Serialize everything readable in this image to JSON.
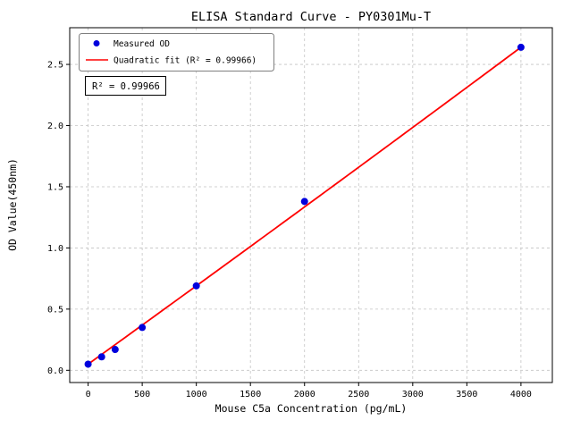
{
  "chart_data": {
    "type": "scatter",
    "title": "ELISA Standard Curve - PY0301Mu-T",
    "xlabel": "Mouse C5a Concentration (pg/mL)",
    "ylabel": "OD Value(450nm)",
    "xlim": [
      -170,
      4290
    ],
    "ylim": [
      -0.1,
      2.8
    ],
    "xticks": [
      0,
      500,
      1000,
      1500,
      2000,
      2500,
      3000,
      3500,
      4000
    ],
    "xtick_labels": [
      "0",
      "500",
      "1000",
      "1500",
      "2000",
      "2500",
      "3000",
      "3500",
      "4000"
    ],
    "yticks": [
      0.0,
      0.5,
      1.0,
      1.5,
      2.0,
      2.5
    ],
    "ytick_labels": [
      "0.0",
      "0.5",
      "1.0",
      "1.5",
      "2.0",
      "2.5"
    ],
    "grid": true,
    "grid_color": "#c3c3c3",
    "axis_color": "#000000",
    "legend_position": "upper left",
    "series": [
      {
        "name": "Measured OD",
        "type": "scatter",
        "color": "#0000dd",
        "x": [
          0,
          125,
          250,
          500,
          1000,
          2000,
          4000
        ],
        "y": [
          0.05,
          0.11,
          0.17,
          0.35,
          0.69,
          1.38,
          2.64
        ]
      },
      {
        "name": "Quadratic fit (R² = 0.99966)",
        "type": "line",
        "color": "#ff0000",
        "fit_coefficients": [
          0.05,
          0.0006375,
          2.5e-09
        ],
        "x_range": [
          0,
          4000
        ]
      }
    ],
    "annotation": "R² = 0.99966"
  }
}
